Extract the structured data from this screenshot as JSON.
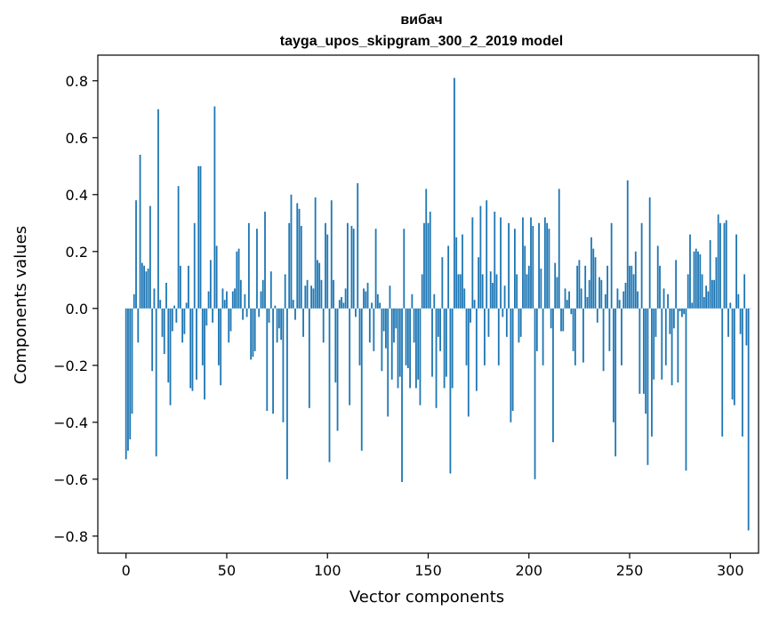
{
  "chart_data": {
    "type": "bar",
    "title": "вибач",
    "subtitle": "tayga_upos_skipgram_300_2_2019 model",
    "xlabel": "Vector components",
    "ylabel": "Components values",
    "xlim": [
      -14,
      314
    ],
    "ylim": [
      -0.86,
      0.89
    ],
    "xticks": [
      0,
      50,
      100,
      150,
      200,
      250,
      300
    ],
    "xtick_labels": [
      "0",
      "50",
      "100",
      "150",
      "200",
      "250",
      "300"
    ],
    "yticks": [
      -0.8,
      -0.6,
      -0.4,
      -0.2,
      0.0,
      0.2,
      0.4,
      0.6,
      0.8
    ],
    "ytick_labels": [
      "−0.8",
      "−0.6",
      "−0.4",
      "−0.2",
      "0.0",
      "0.2",
      "0.4",
      "0.6",
      "0.8"
    ],
    "grid": false,
    "legend": "none",
    "bar_color": "#1f77b4",
    "values": [
      -0.53,
      -0.5,
      -0.46,
      -0.37,
      0.05,
      0.38,
      -0.12,
      0.54,
      0.16,
      0.15,
      0.13,
      0.14,
      0.36,
      -0.22,
      0.07,
      -0.52,
      0.7,
      0.03,
      -0.1,
      -0.16,
      0.09,
      -0.26,
      -0.34,
      -0.08,
      0.01,
      -0.05,
      0.43,
      0.15,
      -0.12,
      -0.09,
      0.02,
      0.15,
      -0.28,
      -0.29,
      0.3,
      -0.25,
      0.5,
      0.5,
      -0.2,
      -0.32,
      -0.06,
      0.06,
      0.17,
      -0.05,
      0.71,
      0.22,
      -0.2,
      -0.27,
      0.07,
      0.03,
      0.06,
      -0.12,
      -0.08,
      0.06,
      0.07,
      0.2,
      0.21,
      0.1,
      -0.04,
      0.05,
      -0.03,
      0.3,
      -0.18,
      -0.17,
      -0.15,
      0.28,
      -0.03,
      0.06,
      0.1,
      0.34,
      -0.36,
      -0.05,
      0.13,
      -0.37,
      0.01,
      -0.12,
      -0.07,
      -0.11,
      -0.4,
      0.12,
      -0.6,
      0.3,
      0.4,
      0.03,
      -0.04,
      0.37,
      0.35,
      0.29,
      -0.1,
      0.08,
      0.1,
      -0.35,
      0.08,
      0.07,
      0.39,
      0.17,
      0.16,
      0.1,
      -0.12,
      0.3,
      0.26,
      -0.54,
      0.38,
      0.1,
      -0.26,
      -0.43,
      0.03,
      0.04,
      0.02,
      0.07,
      0.3,
      -0.34,
      0.29,
      0.28,
      -0.03,
      0.44,
      -0.2,
      -0.5,
      0.07,
      0.06,
      0.09,
      -0.12,
      0.02,
      -0.15,
      0.28,
      0.05,
      0.02,
      -0.22,
      -0.08,
      -0.14,
      -0.38,
      0.08,
      -0.25,
      -0.12,
      -0.07,
      -0.28,
      -0.24,
      -0.61,
      0.28,
      -0.2,
      -0.21,
      -0.28,
      0.05,
      -0.12,
      -0.28,
      -0.25,
      -0.34,
      0.12,
      0.3,
      0.42,
      0.3,
      0.34,
      -0.24,
      0.05,
      -0.35,
      -0.1,
      -0.15,
      0.18,
      -0.28,
      -0.24,
      0.22,
      -0.58,
      -0.28,
      0.81,
      0.25,
      0.12,
      0.12,
      0.26,
      0.07,
      -0.2,
      -0.38,
      -0.05,
      0.32,
      0.03,
      -0.29,
      0.18,
      0.36,
      0.12,
      -0.2,
      0.38,
      -0.1,
      0.13,
      0.09,
      0.34,
      0.12,
      -0.2,
      0.32,
      -0.03,
      0.08,
      -0.1,
      0.3,
      -0.4,
      -0.36,
      0.28,
      0.12,
      -0.12,
      -0.1,
      0.32,
      0.22,
      0.12,
      0.15,
      0.32,
      0.29,
      -0.6,
      -0.15,
      0.3,
      0.14,
      -0.2,
      0.32,
      0.3,
      0.28,
      -0.07,
      -0.47,
      0.16,
      0.11,
      0.42,
      -0.08,
      -0.08,
      0.07,
      0.03,
      0.06,
      -0.02,
      -0.15,
      -0.2,
      0.15,
      0.17,
      0.07,
      -0.19,
      0.15,
      0.04,
      0.1,
      0.25,
      0.21,
      0.18,
      -0.05,
      0.11,
      0.1,
      -0.22,
      0.05,
      0.15,
      -0.15,
      0.3,
      -0.4,
      -0.52,
      0.07,
      0.03,
      -0.2,
      0.06,
      0.09,
      0.45,
      0.15,
      0.15,
      0.12,
      0.2,
      0.06,
      -0.3,
      0.3,
      -0.3,
      -0.37,
      -0.55,
      0.39,
      -0.45,
      -0.25,
      -0.1,
      0.22,
      0.15,
      -0.25,
      0.07,
      -0.2,
      0.05,
      -0.09,
      -0.27,
      -0.07,
      0.17,
      -0.26,
      -0.01,
      -0.03,
      -0.02,
      -0.57,
      0.12,
      0.26,
      0.02,
      0.2,
      0.21,
      0.2,
      0.19,
      0.12,
      0.04,
      0.08,
      0.06,
      0.24,
      0.1,
      0.1,
      0.18,
      0.33,
      0.3,
      -0.45,
      0.3,
      0.31,
      -0.1,
      0.02,
      -0.32,
      -0.34,
      0.26,
      0.05,
      -0.09,
      -0.45,
      0.12,
      -0.13,
      -0.78,
      0.0
    ]
  }
}
